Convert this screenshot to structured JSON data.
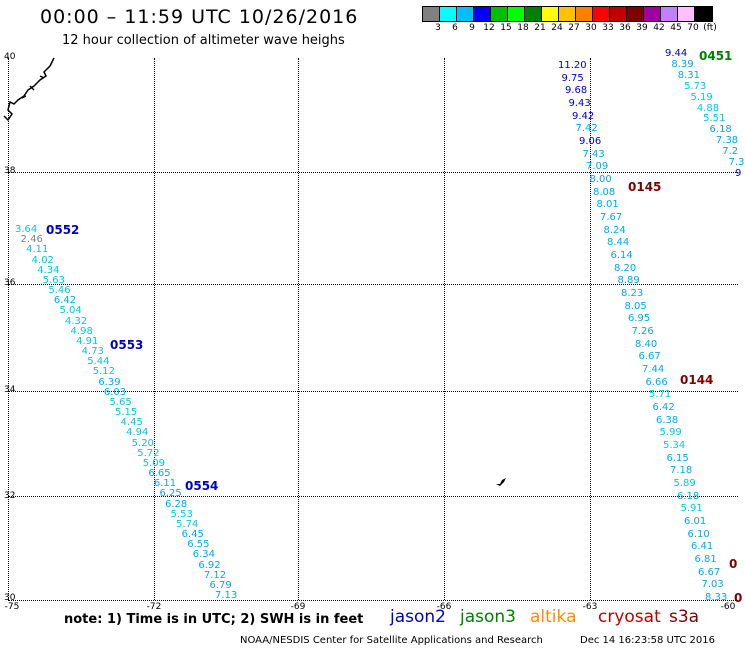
{
  "title": "00:00 – 11:59 UTC 10/26/2016",
  "subtitle": "12 hour collection of altimeter wave heighs",
  "colorbar": {
    "colors": [
      "#808080",
      "#00ffff",
      "#00c0ff",
      "#0000ff",
      "#00c000",
      "#00ff00",
      "#008000",
      "#ffff00",
      "#ffc000",
      "#ff8000",
      "#ff0000",
      "#c00000",
      "#800000",
      "#a000a0",
      "#c080ff",
      "#ffc0ff",
      "#000000"
    ],
    "labels": [
      "3",
      "6",
      "9",
      "12",
      "15",
      "18",
      "21",
      "24",
      "27",
      "30",
      "33",
      "36",
      "39",
      "42",
      "45",
      "70",
      "(ft)"
    ]
  },
  "axes": {
    "lat_labels": [
      "40",
      "38",
      "36",
      "34",
      "32",
      "30"
    ],
    "lon_labels": [
      "-75",
      "-72",
      "-69",
      "-66",
      "-63",
      "-60"
    ]
  },
  "tracks": {
    "track1": [
      "3.64",
      "2.46",
      "4.11",
      "4.02",
      "4.34",
      "5.63",
      "5.46",
      "6.42",
      "5.04",
      "4.32",
      "4.98",
      "4.91",
      "4.73",
      "5.44",
      "5.12",
      "6.39",
      "6.03",
      "5.65",
      "5.15",
      "4.45",
      "4.94",
      "5.20",
      "5.72",
      "5.09",
      "6.65",
      "6.11",
      "6.25",
      "6.28",
      "5.53",
      "5.74",
      "6.45",
      "6.55",
      "6.34",
      "6.92",
      "7.12",
      "6.79",
      "7.13"
    ],
    "track2": [
      "11.20",
      "9.75",
      "9.68",
      "9.43",
      "9.42",
      "7.42",
      "9.06",
      "7.43",
      "7.09",
      "8.00",
      "8.08",
      "8.01",
      "7.67",
      "8.24",
      "8.44",
      "6.14",
      "8.20",
      "8.89",
      "8.23",
      "8.05",
      "6.95",
      "7.26",
      "8.40",
      "6.67",
      "7.44",
      "6.66",
      "5.71",
      "6.42",
      "6.38",
      "5.99",
      "5.34",
      "6.15",
      "7.18",
      "5.89",
      "6.18",
      "5.91",
      "6.01",
      "6.10",
      "6.41",
      "6.81",
      "6.67",
      "7.03",
      "8.33"
    ],
    "track3": [
      "9.44",
      "8.39",
      "8.31",
      "5.73",
      "5.19",
      "4.88",
      "5.51",
      "6.18",
      "7.38",
      "7.2",
      "7.3",
      "9"
    ]
  },
  "pass_labels": [
    "0552",
    "0553",
    "0554",
    "0145",
    "0144",
    "0451",
    "0",
    "0"
  ],
  "note": "note:  1) Time is in UTC;  2) SWH is in feet",
  "legend": [
    {
      "name": "jason2",
      "color": "#0000c8"
    },
    {
      "name": "jason3",
      "color": "#008000"
    },
    {
      "name": "altika",
      "color": "#ff8c00"
    },
    {
      "name": "cryosat",
      "color": "#c00000"
    },
    {
      "name": "s3a",
      "color": "#800000"
    }
  ],
  "credit": "NOAA/NESDIS Center for Satellite Applications and Research",
  "timestamp": "Dec 14 16:23:58 UTC 2016"
}
